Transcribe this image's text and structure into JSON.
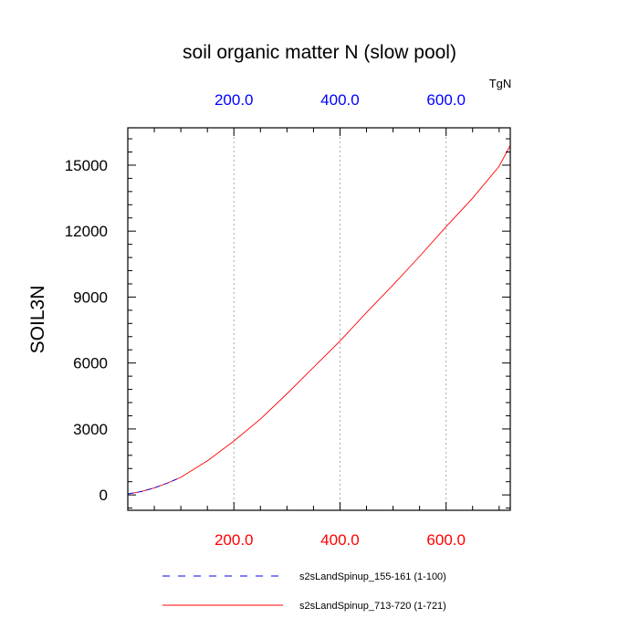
{
  "chart_data": {
    "type": "line",
    "title": "soil organic matter N (slow pool)",
    "ylabel": "SOIL3N",
    "xlabel": "",
    "top_axis_unit": "TgN",
    "xlim": [
      0,
      721
    ],
    "ylim": [
      -700,
      16700
    ],
    "x_ticks_bottom": [
      200.0,
      400.0,
      600.0
    ],
    "x_tick_labels_bottom": [
      "200.0",
      "400.0",
      "600.0"
    ],
    "x_ticks_top": [
      200.0,
      400.0,
      600.0
    ],
    "x_tick_labels_top": [
      "200.0",
      "400.0",
      "600.0"
    ],
    "y_ticks": [
      0,
      3000,
      6000,
      9000,
      12000,
      15000
    ],
    "y_tick_labels": [
      "0",
      "3000",
      "6000",
      "9000",
      "12000",
      "15000"
    ],
    "grid": "vertical dotted at x ticks",
    "series": [
      {
        "name": "s2sLandSpinup_713-720 (1-721)",
        "color": "#ff0000",
        "style": "solid",
        "x": [
          1,
          25,
          50,
          75,
          100,
          150,
          200,
          250,
          300,
          350,
          400,
          450,
          500,
          550,
          600,
          650,
          700,
          721
        ],
        "y": [
          50,
          150,
          320,
          540,
          800,
          1550,
          2450,
          3450,
          4600,
          5800,
          7000,
          8300,
          9550,
          10850,
          12200,
          13500,
          14950,
          15900
        ]
      },
      {
        "name": "s2sLandSpinup_155-161 (1-100)",
        "color": "#0000ff",
        "style": "dashed",
        "x": [
          1,
          25,
          50,
          75,
          100
        ],
        "y": [
          50,
          150,
          320,
          540,
          800
        ]
      }
    ],
    "legend": [
      {
        "label": "s2sLandSpinup_155-161 (1-100)",
        "color": "#0000ff",
        "style": "dashed"
      },
      {
        "label": "s2sLandSpinup_713-720 (1-721)",
        "color": "#ff0000",
        "style": "solid"
      }
    ],
    "legend_placement": "below plot"
  }
}
